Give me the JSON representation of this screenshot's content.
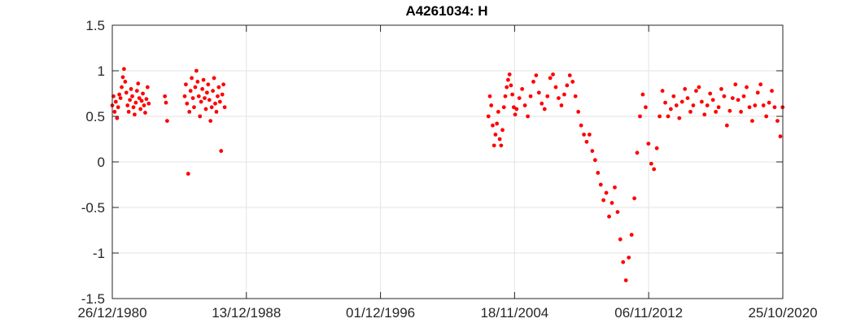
{
  "chart_data": {
    "type": "scatter",
    "title": "A4261034: H",
    "xlabel": "",
    "ylabel": "",
    "x_axis_type": "date",
    "xlim": [
      "1980-12-26",
      "2020-10-25"
    ],
    "ylim": [
      -1.5,
      1.5
    ],
    "x_ticks": [
      "26/12/1980",
      "13/12/1988",
      "01/12/1996",
      "18/11/2004",
      "06/11/2012",
      "25/10/2020"
    ],
    "y_ticks": [
      "-1.5",
      "-1",
      "-0.5",
      "0",
      "0.5",
      "1",
      "1.5"
    ],
    "grid": true,
    "legend": "none",
    "marker_color": "#ff0000",
    "series": [
      {
        "values": [
          [
            "1980-12-26",
            0.62
          ],
          [
            "1981-01-20",
            0.72
          ],
          [
            "1981-02-15",
            0.55
          ],
          [
            "1981-03-12",
            0.66
          ],
          [
            "1981-04-08",
            0.48
          ],
          [
            "1981-05-02",
            0.6
          ],
          [
            "1981-05-28",
            0.74
          ],
          [
            "1981-06-22",
            0.7
          ],
          [
            "1981-07-18",
            0.82
          ],
          [
            "1981-08-12",
            0.93
          ],
          [
            "1981-09-06",
            1.02
          ],
          [
            "1981-10-02",
            0.88
          ],
          [
            "1981-10-27",
            0.76
          ],
          [
            "1981-11-22",
            0.62
          ],
          [
            "1981-12-17",
            0.55
          ],
          [
            "1982-01-12",
            0.68
          ],
          [
            "1982-02-06",
            0.8
          ],
          [
            "1982-03-04",
            0.72
          ],
          [
            "1982-03-30",
            0.6
          ],
          [
            "1982-04-24",
            0.52
          ],
          [
            "1982-05-20",
            0.65
          ],
          [
            "1982-06-14",
            0.78
          ],
          [
            "1982-07-10",
            0.86
          ],
          [
            "1982-08-04",
            0.7
          ],
          [
            "1982-08-30",
            0.58
          ],
          [
            "1982-09-24",
            0.67
          ],
          [
            "1982-10-20",
            0.75
          ],
          [
            "1982-11-15",
            0.62
          ],
          [
            "1982-12-10",
            0.54
          ],
          [
            "1983-01-05",
            0.69
          ],
          [
            "1983-01-30",
            0.82
          ],
          [
            "1983-02-25",
            0.64
          ],
          [
            "1984-02-10",
            0.72
          ],
          [
            "1984-03-05",
            0.65
          ],
          [
            "1984-03-30",
            0.45
          ],
          [
            "1985-04-15",
            0.72
          ],
          [
            "1985-05-10",
            0.85
          ],
          [
            "1985-06-04",
            0.64
          ],
          [
            "1985-06-30",
            -0.13
          ],
          [
            "1985-07-25",
            0.55
          ],
          [
            "1985-08-20",
            0.78
          ],
          [
            "1985-09-14",
            0.92
          ],
          [
            "1985-10-10",
            0.7
          ],
          [
            "1985-11-04",
            0.6
          ],
          [
            "1985-11-30",
            0.82
          ],
          [
            "1985-12-25",
            1.0
          ],
          [
            "1986-01-20",
            0.88
          ],
          [
            "1986-02-14",
            0.72
          ],
          [
            "1986-03-12",
            0.5
          ],
          [
            "1986-04-06",
            0.66
          ],
          [
            "1986-05-02",
            0.8
          ],
          [
            "1986-05-28",
            0.9
          ],
          [
            "1986-06-22",
            0.7
          ],
          [
            "1986-07-18",
            0.58
          ],
          [
            "1986-08-12",
            0.76
          ],
          [
            "1986-09-06",
            0.85
          ],
          [
            "1986-10-02",
            0.68
          ],
          [
            "1986-10-27",
            0.45
          ],
          [
            "1986-11-22",
            0.6
          ],
          [
            "1986-12-17",
            0.78
          ],
          [
            "1987-01-12",
            0.92
          ],
          [
            "1987-02-06",
            0.64
          ],
          [
            "1987-03-04",
            0.55
          ],
          [
            "1987-03-30",
            0.72
          ],
          [
            "1987-04-24",
            0.82
          ],
          [
            "1987-05-20",
            0.66
          ],
          [
            "1987-06-14",
            0.12
          ],
          [
            "1987-07-10",
            0.74
          ],
          [
            "1987-08-04",
            0.85
          ],
          [
            "1987-08-30",
            0.6
          ],
          [
            "2003-05-01",
            0.5
          ],
          [
            "2003-06-01",
            0.72
          ],
          [
            "2003-07-01",
            0.62
          ],
          [
            "2003-08-01",
            0.4
          ],
          [
            "2003-09-01",
            0.18
          ],
          [
            "2003-10-01",
            0.3
          ],
          [
            "2003-11-01",
            0.42
          ],
          [
            "2003-12-01",
            0.55
          ],
          [
            "2004-01-01",
            0.25
          ],
          [
            "2004-02-01",
            0.18
          ],
          [
            "2004-03-01",
            0.35
          ],
          [
            "2004-04-01",
            0.6
          ],
          [
            "2004-05-01",
            0.72
          ],
          [
            "2004-06-01",
            0.82
          ],
          [
            "2004-07-01",
            0.9
          ],
          [
            "2004-08-01",
            0.96
          ],
          [
            "2004-09-01",
            0.84
          ],
          [
            "2004-10-01",
            0.74
          ],
          [
            "2004-11-01",
            0.6
          ],
          [
            "2004-12-01",
            0.52
          ],
          [
            "2005-01-01",
            0.58
          ],
          [
            "2005-03-01",
            0.7
          ],
          [
            "2005-05-01",
            0.8
          ],
          [
            "2005-07-01",
            0.62
          ],
          [
            "2005-09-01",
            0.5
          ],
          [
            "2005-11-01",
            0.72
          ],
          [
            "2006-01-01",
            0.88
          ],
          [
            "2006-03-01",
            0.95
          ],
          [
            "2006-05-01",
            0.76
          ],
          [
            "2006-07-01",
            0.64
          ],
          [
            "2006-09-01",
            0.58
          ],
          [
            "2006-11-01",
            0.72
          ],
          [
            "2007-01-01",
            0.92
          ],
          [
            "2007-03-01",
            0.96
          ],
          [
            "2007-05-01",
            0.82
          ],
          [
            "2007-07-01",
            0.7
          ],
          [
            "2007-09-01",
            0.62
          ],
          [
            "2007-11-01",
            0.74
          ],
          [
            "2008-01-01",
            0.84
          ],
          [
            "2008-03-01",
            0.95
          ],
          [
            "2008-05-01",
            0.88
          ],
          [
            "2008-07-01",
            0.72
          ],
          [
            "2008-09-01",
            0.55
          ],
          [
            "2008-11-01",
            0.4
          ],
          [
            "2009-01-01",
            0.3
          ],
          [
            "2009-03-01",
            0.22
          ],
          [
            "2009-05-01",
            0.3
          ],
          [
            "2009-07-01",
            0.12
          ],
          [
            "2009-09-01",
            0.02
          ],
          [
            "2009-11-01",
            -0.12
          ],
          [
            "2010-01-01",
            -0.25
          ],
          [
            "2010-03-01",
            -0.42
          ],
          [
            "2010-05-01",
            -0.34
          ],
          [
            "2010-07-01",
            -0.6
          ],
          [
            "2010-09-01",
            -0.45
          ],
          [
            "2010-11-01",
            -0.28
          ],
          [
            "2011-01-01",
            -0.55
          ],
          [
            "2011-03-01",
            -0.85
          ],
          [
            "2011-05-01",
            -1.1
          ],
          [
            "2011-07-01",
            -1.3
          ],
          [
            "2011-09-01",
            -1.05
          ],
          [
            "2011-11-01",
            -0.8
          ],
          [
            "2012-01-01",
            -0.4
          ],
          [
            "2012-03-01",
            0.1
          ],
          [
            "2012-05-01",
            0.5
          ],
          [
            "2012-07-01",
            0.74
          ],
          [
            "2012-09-01",
            0.6
          ],
          [
            "2012-11-01",
            0.2
          ],
          [
            "2013-01-01",
            -0.02
          ],
          [
            "2013-03-01",
            -0.08
          ],
          [
            "2013-05-01",
            0.15
          ],
          [
            "2013-07-01",
            0.5
          ],
          [
            "2013-09-01",
            0.78
          ],
          [
            "2013-11-01",
            0.65
          ],
          [
            "2014-01-01",
            0.5
          ],
          [
            "2014-03-01",
            0.58
          ],
          [
            "2014-05-01",
            0.72
          ],
          [
            "2014-07-01",
            0.62
          ],
          [
            "2014-09-01",
            0.48
          ],
          [
            "2014-11-01",
            0.66
          ],
          [
            "2015-01-01",
            0.8
          ],
          [
            "2015-03-01",
            0.7
          ],
          [
            "2015-05-01",
            0.55
          ],
          [
            "2015-07-01",
            0.62
          ],
          [
            "2015-09-01",
            0.78
          ],
          [
            "2015-11-01",
            0.82
          ],
          [
            "2016-01-01",
            0.66
          ],
          [
            "2016-03-01",
            0.52
          ],
          [
            "2016-05-01",
            0.62
          ],
          [
            "2016-07-01",
            0.75
          ],
          [
            "2016-09-01",
            0.68
          ],
          [
            "2016-11-01",
            0.55
          ],
          [
            "2017-01-01",
            0.6
          ],
          [
            "2017-03-01",
            0.8
          ],
          [
            "2017-05-01",
            0.72
          ],
          [
            "2017-07-01",
            0.4
          ],
          [
            "2017-09-01",
            0.56
          ],
          [
            "2017-11-01",
            0.7
          ],
          [
            "2018-01-01",
            0.85
          ],
          [
            "2018-03-01",
            0.68
          ],
          [
            "2018-05-01",
            0.55
          ],
          [
            "2018-07-01",
            0.72
          ],
          [
            "2018-09-01",
            0.82
          ],
          [
            "2018-11-01",
            0.6
          ],
          [
            "2019-01-01",
            0.45
          ],
          [
            "2019-03-01",
            0.62
          ],
          [
            "2019-05-01",
            0.76
          ],
          [
            "2019-07-01",
            0.85
          ],
          [
            "2019-09-01",
            0.62
          ],
          [
            "2019-11-01",
            0.5
          ],
          [
            "2020-01-01",
            0.65
          ],
          [
            "2020-03-01",
            0.78
          ],
          [
            "2020-05-01",
            0.6
          ],
          [
            "2020-07-01",
            0.45
          ],
          [
            "2020-09-01",
            0.28
          ],
          [
            "2020-10-20",
            0.6
          ]
        ]
      }
    ]
  }
}
